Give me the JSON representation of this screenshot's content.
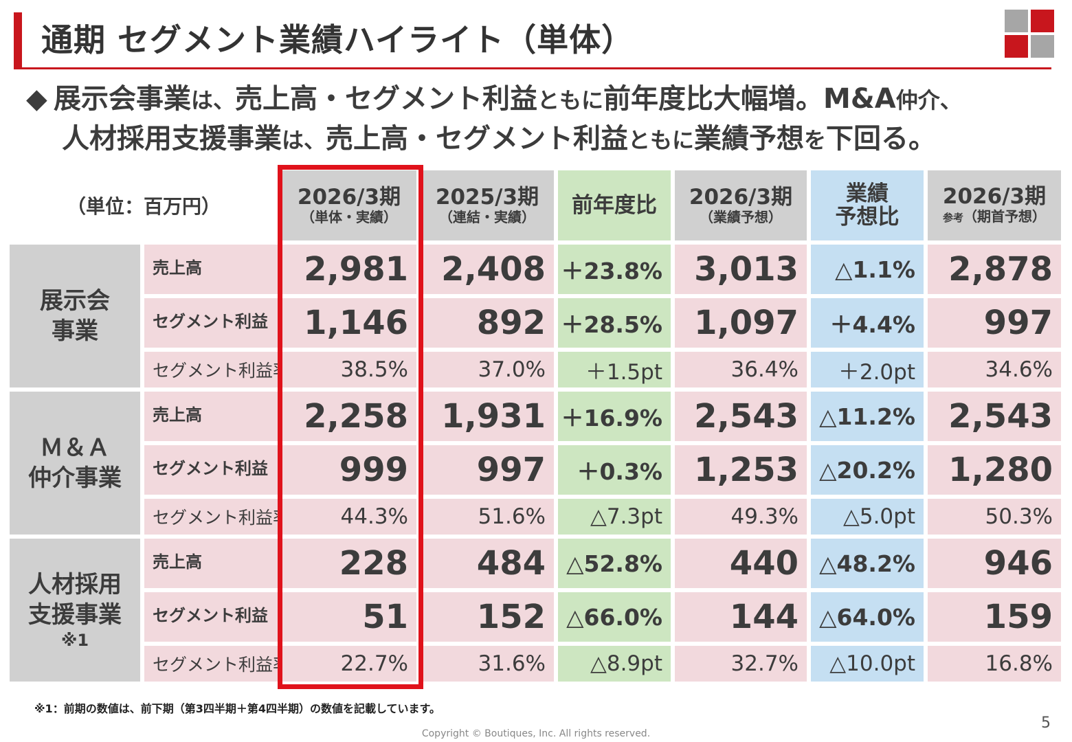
{
  "title": "通期 セグメント業績ハイライト（単体）",
  "headline": {
    "line1": [
      "展示会事業",
      "は、",
      "売上高・セグメント利益",
      "ともに",
      "前年度比大幅増。M&A",
      "仲介、"
    ],
    "line2": [
      "人材採用支援事業",
      "は、",
      "売上高・セグメント利益",
      "ともに",
      "業績予想",
      "を",
      "下回る。"
    ]
  },
  "unit_label": "（単位：百万円）",
  "columns": [
    {
      "h1": "2026/3期",
      "h2": "（単体・実績）"
    },
    {
      "h1": "2025/3期",
      "h2": "（連結・実績）"
    },
    {
      "h1": "前年度比",
      "h2": ""
    },
    {
      "h1": "2026/3期",
      "h2": "（業績予想）"
    },
    {
      "h1": "業績",
      "h1b": "予想比"
    },
    {
      "h1": "2026/3期",
      "h2_pre": "参考",
      "h2": "（期首予想）"
    }
  ],
  "segments": [
    {
      "name_lines": [
        "展示会",
        "事業"
      ],
      "note": "",
      "rows": [
        {
          "label": "売上高",
          "values": [
            "2,981",
            "2,408",
            "＋23.8%",
            "3,013",
            "△1.1%",
            "2,878"
          ]
        },
        {
          "label": "セグメント利益",
          "values": [
            "1,146",
            "892",
            "＋28.5%",
            "1,097",
            "＋4.4%",
            "997"
          ]
        },
        {
          "label": "セグメント利益率",
          "values": [
            "38.5%",
            "37.0%",
            "＋1.5pt",
            "36.4%",
            "＋2.0pt",
            "34.6%"
          ]
        }
      ]
    },
    {
      "name_lines": [
        "Ｍ＆Ａ",
        "仲介事業"
      ],
      "note": "",
      "rows": [
        {
          "label": "売上高",
          "values": [
            "2,258",
            "1,931",
            "＋16.9%",
            "2,543",
            "△11.2%",
            "2,543"
          ]
        },
        {
          "label": "セグメント利益",
          "values": [
            "999",
            "997",
            "＋0.3%",
            "1,253",
            "△20.2%",
            "1,280"
          ]
        },
        {
          "label": "セグメント利益率",
          "values": [
            "44.3%",
            "51.6%",
            "△7.3pt",
            "49.3%",
            "△5.0pt",
            "50.3%"
          ]
        }
      ]
    },
    {
      "name_lines": [
        "人材採用",
        "支援事業"
      ],
      "note": "※1",
      "rows": [
        {
          "label": "売上高",
          "values": [
            "228",
            "484",
            "△52.8%",
            "440",
            "△48.2%",
            "946"
          ]
        },
        {
          "label": "セグメント利益",
          "values": [
            "51",
            "152",
            "△66.0%",
            "144",
            "△64.0%",
            "159"
          ]
        },
        {
          "label": "セグメント利益率",
          "values": [
            "22.7%",
            "31.6%",
            "△8.9pt",
            "32.7%",
            "△10.0pt",
            "16.8%"
          ]
        }
      ]
    }
  ],
  "footnote": "※1：前期の数値は、前下期（第3四半期＋第4四半期）の数値を記載しています。",
  "copyright": "Copyright © Boutiques, Inc. All rights reserved.",
  "page_number": "5",
  "colors": {
    "accent_red": "#c8161d",
    "highlight_red": "#e0121b",
    "header_gray": "#d0d0d0",
    "cell_pink": "#f2d9dd",
    "yoy_green": "#cde6c1",
    "forecast_blue": "#c5dff2",
    "logo_gray": "#a6a6a6"
  }
}
